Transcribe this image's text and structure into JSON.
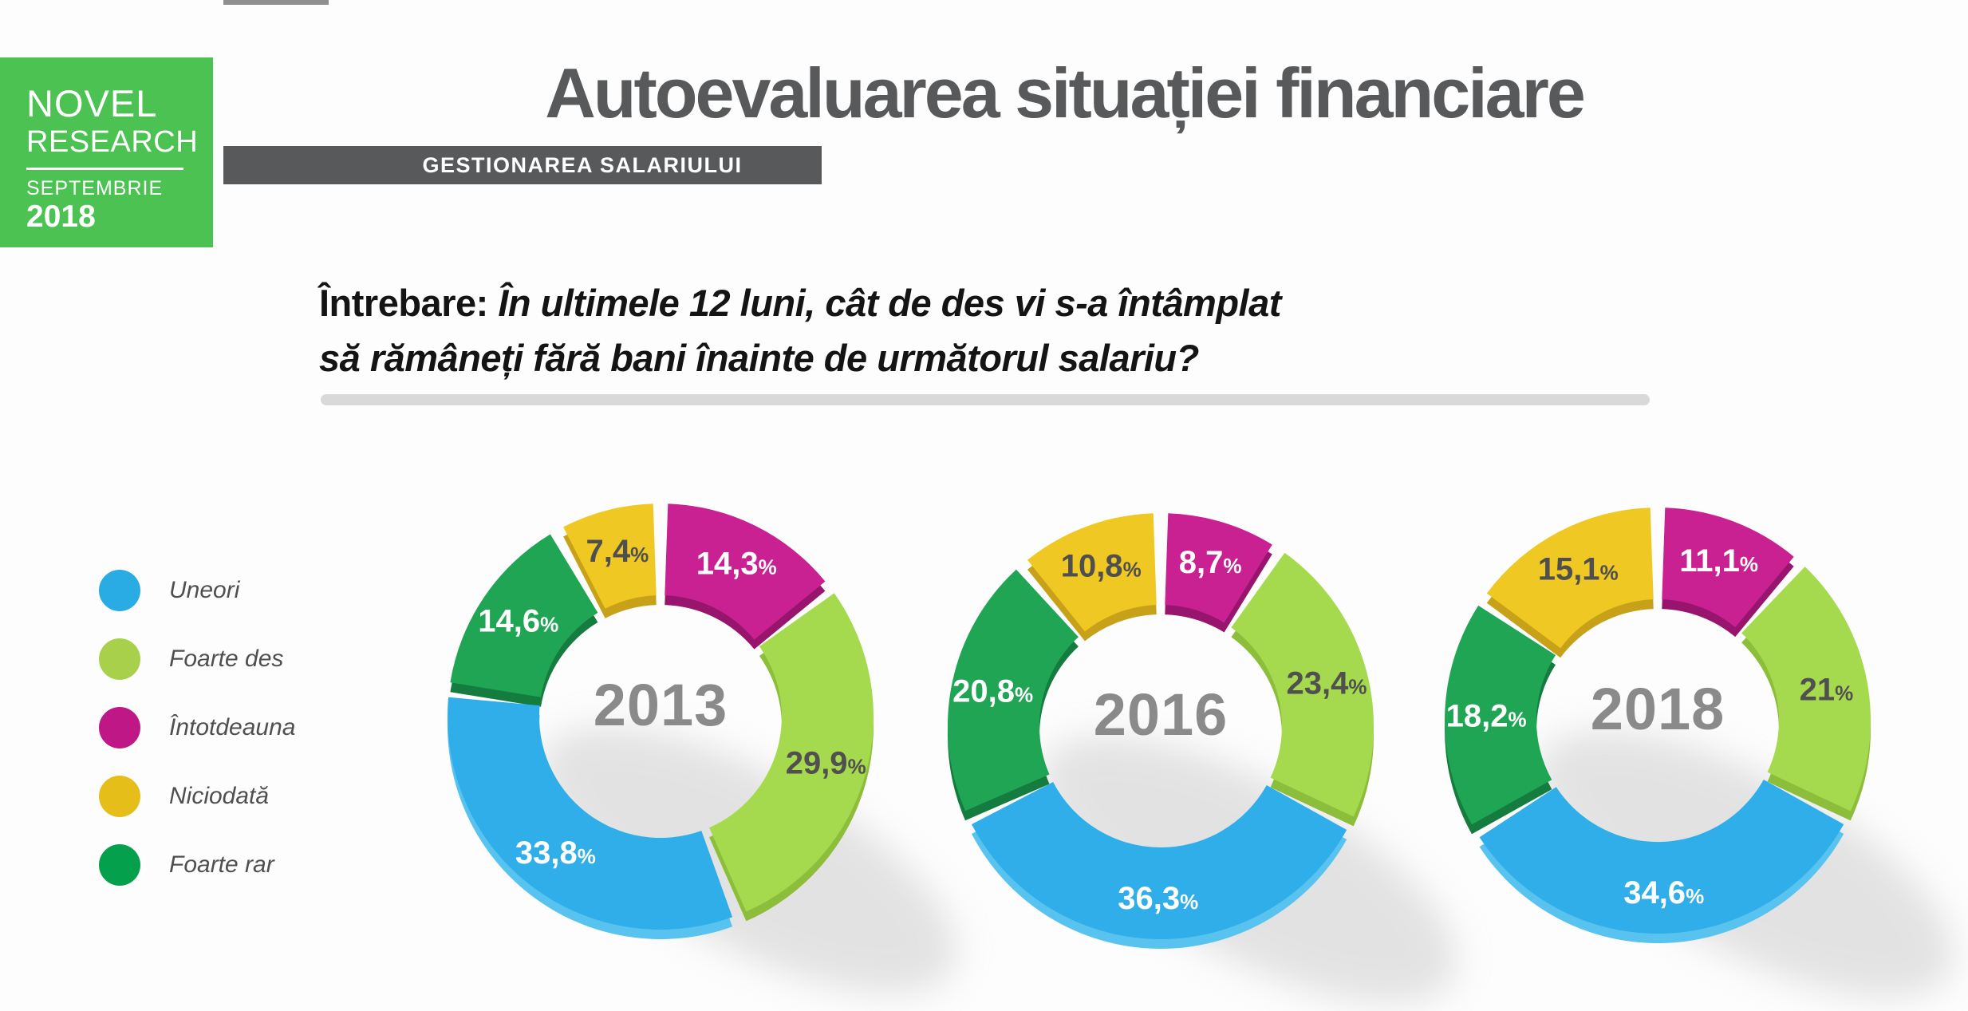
{
  "logo": {
    "name_line1": "NOVEL",
    "name_line2": "RESEARCH",
    "month": "SEPTEMBRIE",
    "year": "2018",
    "bg_color": "#4CC252"
  },
  "header": {
    "title": "Autoevaluarea situației financiare",
    "tag": "GESTIONAREA SALARIULUI",
    "title_color": "#58595B",
    "tag_bar_color": "#58595B"
  },
  "question": {
    "prefix": "Întrebare:",
    "line1": " În ultimele 12 luni, cât de des vi s-a întâmplat",
    "line2": "să rămâneți fără bani înainte de următorul salariu?"
  },
  "legend": {
    "items": [
      {
        "label": "Uneori",
        "color": "#29ACE3"
      },
      {
        "label": "Foarte des",
        "color": "#A9D04B"
      },
      {
        "label": "Întotdeauna",
        "color": "#BF1786"
      },
      {
        "label": "Niciodată",
        "color": "#E6BE19"
      },
      {
        "label": "Foarte rar",
        "color": "#04A04C"
      }
    ]
  },
  "chart_data": {
    "type": "donut",
    "unit": "%",
    "clockwise_from_top": true,
    "segment_gap_degrees": 4,
    "year_color": "#8A8A8A",
    "palette": {
      "Uneori": {
        "color": "#2FAEE9",
        "side": "#59C3F0",
        "label_color": "#FFFFFF"
      },
      "Foarte des": {
        "color": "#A6DA4E",
        "side": "#8CBE3C",
        "label_color": "#505050"
      },
      "Întotdeauna": {
        "color": "#C92192",
        "side": "#97156C",
        "label_color": "#FFFFFF"
      },
      "Niciodată": {
        "color": "#F0C823",
        "side": "#C7A117",
        "label_color": "#4F4F4F"
      },
      "Foarte rar": {
        "color": "#1FA553",
        "side": "#137C3E",
        "label_color": "#FFFFFF"
      }
    },
    "charts": [
      {
        "year": "2013",
        "segments": [
          {
            "category": "Întotdeauna",
            "value": 14.3,
            "label": "14,3%"
          },
          {
            "category": "Foarte des",
            "value": 29.9,
            "label": "29,9%"
          },
          {
            "category": "Uneori",
            "value": 33.8,
            "label": "33,8%"
          },
          {
            "category": "Foarte rar",
            "value": 14.6,
            "label": "14,6%"
          },
          {
            "category": "Niciodată",
            "value": 7.4,
            "label": "7,4%"
          }
        ]
      },
      {
        "year": "2016",
        "segments": [
          {
            "category": "Întotdeauna",
            "value": 8.7,
            "label": "8,7%"
          },
          {
            "category": "Foarte des",
            "value": 23.4,
            "label": "23,4%"
          },
          {
            "category": "Uneori",
            "value": 36.3,
            "label": "36,3%"
          },
          {
            "category": "Foarte rar",
            "value": 20.8,
            "label": "20,8%"
          },
          {
            "category": "Niciodată",
            "value": 10.8,
            "label": "10,8%"
          }
        ]
      },
      {
        "year": "2018",
        "segments": [
          {
            "category": "Întotdeauna",
            "value": 11.1,
            "label": "11,1%"
          },
          {
            "category": "Foarte des",
            "value": 21.0,
            "label": "21%"
          },
          {
            "category": "Uneori",
            "value": 34.6,
            "label": "34,6%"
          },
          {
            "category": "Foarte rar",
            "value": 18.2,
            "label": "18,2%"
          },
          {
            "category": "Niciodată",
            "value": 15.1,
            "label": "15,1%"
          }
        ]
      }
    ]
  }
}
